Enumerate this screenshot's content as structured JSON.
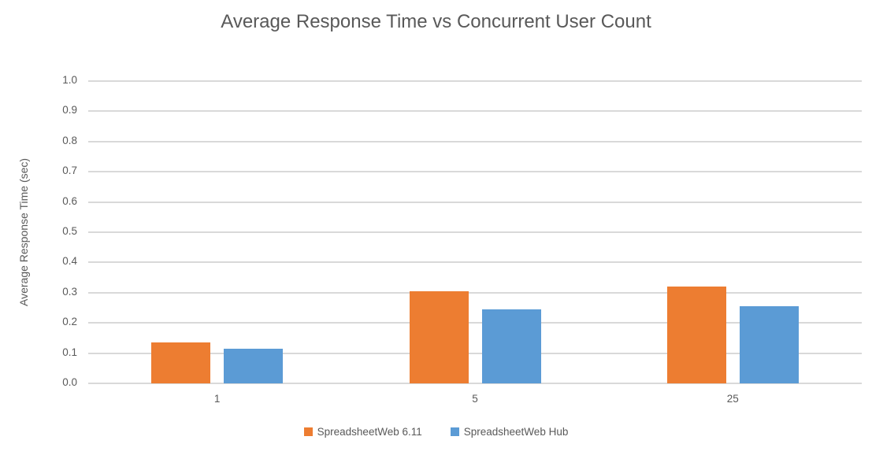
{
  "chart_data": {
    "type": "bar",
    "title": "Average Response Time vs Concurrent User Count",
    "xlabel": "",
    "ylabel": "Average Response Time (sec)",
    "categories": [
      "1",
      "5",
      "25"
    ],
    "series": [
      {
        "name": "SpreadsheetWeb 6.11",
        "color": "#ED7D31",
        "values": [
          0.135,
          0.305,
          0.32
        ]
      },
      {
        "name": "SpreadsheetWeb Hub",
        "color": "#5B9BD5",
        "values": [
          0.115,
          0.245,
          0.255
        ]
      }
    ],
    "ylim": [
      0.0,
      1.0
    ],
    "ytick_labels": [
      "0.0",
      "0.1",
      "0.2",
      "0.3",
      "0.4",
      "0.5",
      "0.6",
      "0.7",
      "0.8",
      "0.9",
      "1.0"
    ],
    "grid": true,
    "legend_position": "bottom",
    "colors": {
      "text": "#595959",
      "gridline": "#D9D9D9",
      "background": "#FFFFFF"
    }
  }
}
